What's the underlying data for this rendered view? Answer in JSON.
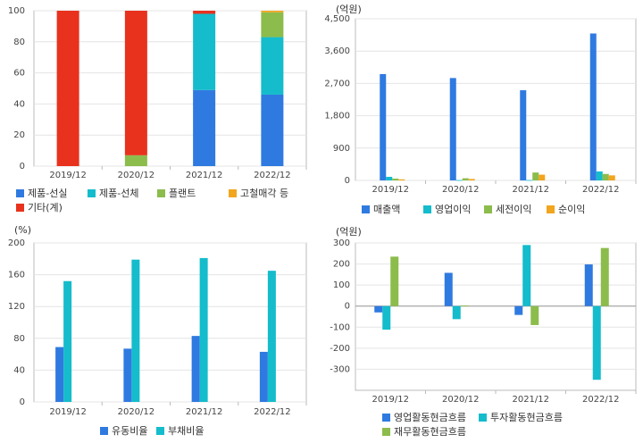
{
  "chart_data": [
    {
      "type": "bar",
      "stacked": true,
      "categories": [
        "2019/12",
        "2020/12",
        "2021/12",
        "2022/12"
      ],
      "ylim": [
        0,
        100
      ],
      "yticks": [
        "0",
        "20",
        "40",
        "60",
        "80",
        "100"
      ],
      "series": [
        {
          "name": "제품-선실",
          "color": "#2f7ae0",
          "values": [
            0,
            0,
            49,
            46
          ]
        },
        {
          "name": "제품-선체",
          "color": "#14bccc",
          "values": [
            0,
            0,
            49,
            37
          ]
        },
        {
          "name": "플랜트",
          "color": "#8cbc4c",
          "values": [
            0,
            7,
            0,
            16
          ]
        },
        {
          "name": "고철매각 등",
          "color": "#f2a51e",
          "values": [
            0,
            0,
            0,
            1
          ]
        },
        {
          "name": "기타(계)",
          "color": "#e8321e",
          "values": [
            100,
            93,
            2,
            0
          ]
        }
      ]
    },
    {
      "type": "bar",
      "unit": "(억원)",
      "categories": [
        "2019/12",
        "2020/12",
        "2021/12",
        "2022/12"
      ],
      "ylim": [
        0,
        4500
      ],
      "yticks": [
        "0",
        "900",
        "1,800",
        "2,700",
        "3,600",
        "4,500"
      ],
      "series": [
        {
          "name": "매출액",
          "color": "#2f7ae0",
          "values": [
            2960,
            2850,
            2510,
            4090
          ]
        },
        {
          "name": "영업이익",
          "color": "#14bccc",
          "values": [
            100,
            10,
            10,
            250
          ]
        },
        {
          "name": "세전이익",
          "color": "#8cbc4c",
          "values": [
            50,
            60,
            220,
            180
          ]
        },
        {
          "name": "순이익",
          "color": "#f2a51e",
          "values": [
            30,
            40,
            160,
            140
          ]
        }
      ]
    },
    {
      "type": "bar",
      "unit": "(%)",
      "categories": [
        "2019/12",
        "2020/12",
        "2021/12",
        "2022/12"
      ],
      "ylim": [
        0,
        200
      ],
      "yticks": [
        "0",
        "40",
        "80",
        "120",
        "160",
        "200"
      ],
      "series": [
        {
          "name": "유동비율",
          "color": "#2f7ae0",
          "values": [
            69,
            67,
            83,
            63
          ]
        },
        {
          "name": "부채비율",
          "color": "#14bccc",
          "values": [
            152,
            179,
            181,
            165
          ]
        }
      ]
    },
    {
      "type": "bar",
      "unit": "(억원)",
      "categories": [
        "2019/12",
        "2020/12",
        "2021/12",
        "2022/12"
      ],
      "ylim": [
        -400,
        300
      ],
      "yticks": [
        "-300",
        "-200",
        "-100",
        "0",
        "100",
        "200",
        "300"
      ],
      "ytick_values": [
        -300,
        -200,
        -100,
        0,
        100,
        200,
        300
      ],
      "series": [
        {
          "name": "영업활동현금흐름",
          "color": "#2f7ae0",
          "values": [
            -30,
            158,
            -42,
            198
          ]
        },
        {
          "name": "투자활동현금흐름",
          "color": "#14bccc",
          "values": [
            -112,
            -62,
            290,
            -350
          ]
        },
        {
          "name": "재무활동현금흐름",
          "color": "#8cbc4c",
          "values": [
            235,
            3,
            -90,
            276
          ]
        }
      ]
    }
  ]
}
